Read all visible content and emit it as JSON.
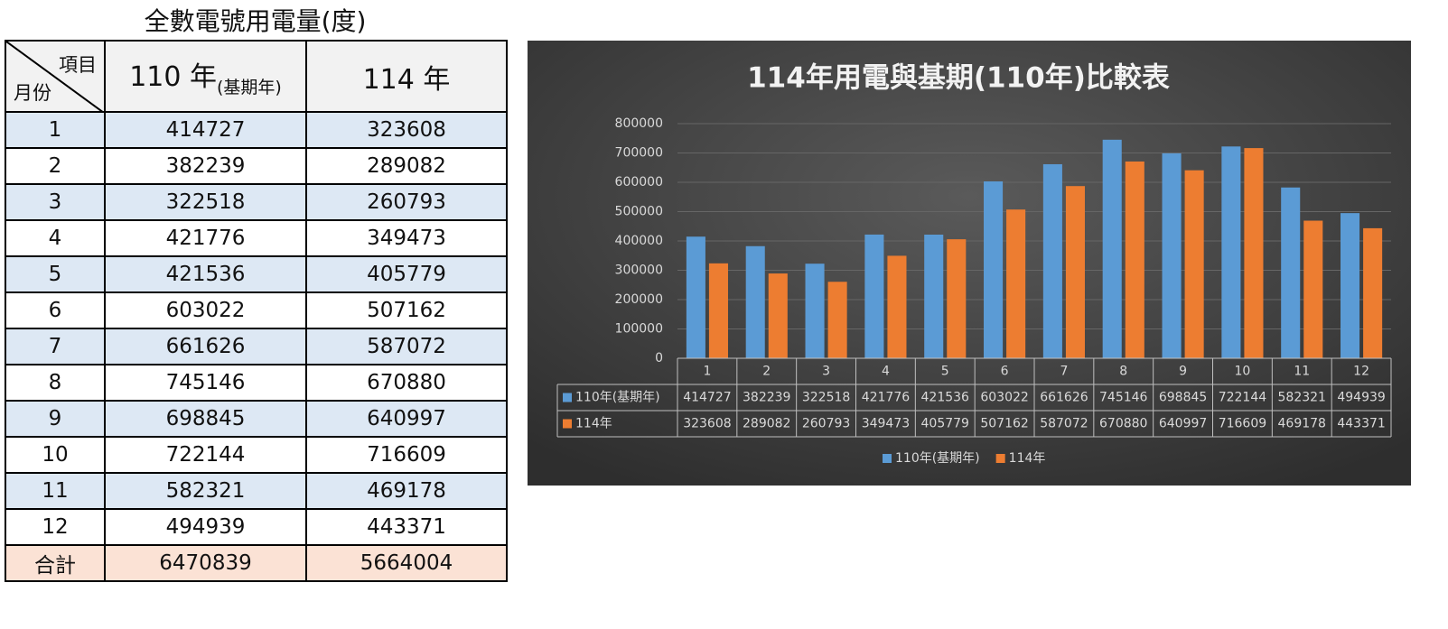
{
  "table": {
    "title": "全數電號用電量(度)",
    "header": {
      "corner_top": "項目",
      "corner_bottom": "月份",
      "col1": "110 年",
      "col1_sub": "(基期年)",
      "col2": "114 年"
    },
    "rows": [
      [
        1,
        414727,
        323608
      ],
      [
        2,
        382239,
        289082
      ],
      [
        3,
        322518,
        260793
      ],
      [
        4,
        421776,
        349473
      ],
      [
        5,
        421536,
        405779
      ],
      [
        6,
        603022,
        507162
      ],
      [
        7,
        661626,
        587072
      ],
      [
        8,
        745146,
        670880
      ],
      [
        9,
        698845,
        640997
      ],
      [
        10,
        722144,
        716609
      ],
      [
        11,
        582321,
        469178
      ],
      [
        12,
        494939,
        443371
      ],
      [
        "合計",
        6470839,
        5664004
      ]
    ]
  },
  "chart_data": {
    "type": "bar",
    "title": "114年用電與基期(110年)比較表",
    "categories": [
      "1",
      "2",
      "3",
      "4",
      "5",
      "6",
      "7",
      "8",
      "9",
      "10",
      "11",
      "12"
    ],
    "series": [
      {
        "name": "110年(基期年)",
        "color": "#5b9bd5",
        "values": [
          414727,
          382239,
          322518,
          421776,
          421536,
          603022,
          661626,
          745146,
          698845,
          722144,
          582321,
          494939
        ]
      },
      {
        "name": "114年",
        "color": "#ed7d31",
        "values": [
          323608,
          289082,
          260793,
          349473,
          405779,
          507162,
          587072,
          670880,
          640997,
          716609,
          469178,
          443371
        ]
      }
    ],
    "ylim": [
      0,
      800000
    ],
    "yticks": [
      0,
      100000,
      200000,
      300000,
      400000,
      500000,
      600000,
      700000,
      800000
    ],
    "grid": true,
    "legend": "bottom"
  }
}
